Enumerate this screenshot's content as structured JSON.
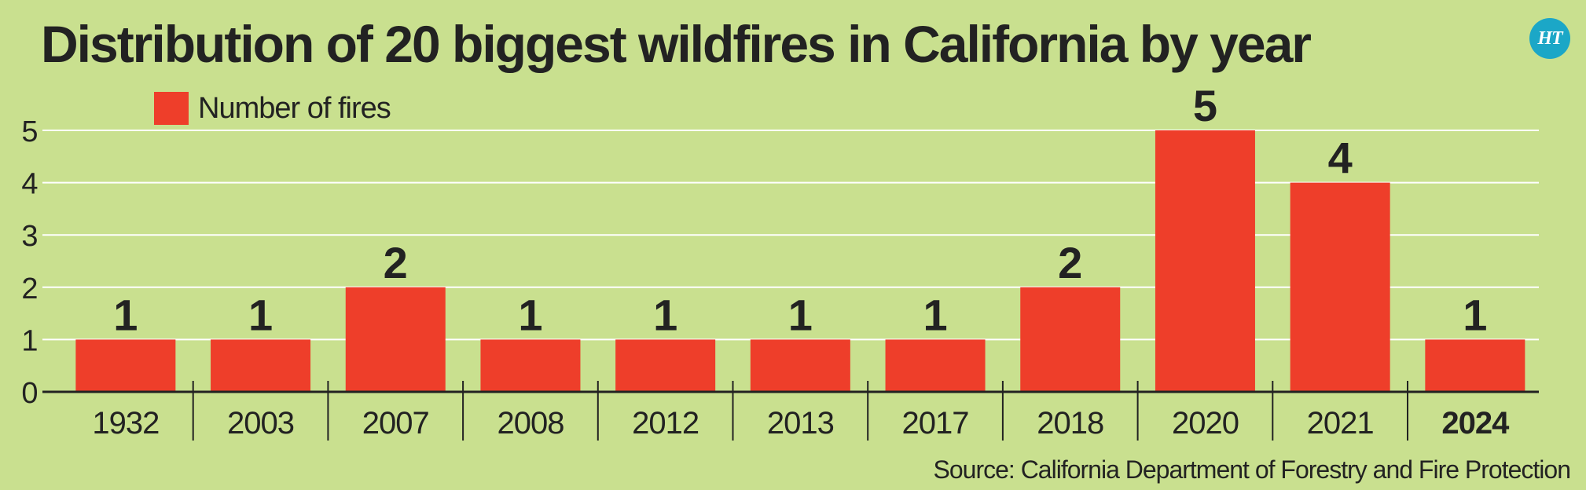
{
  "title": "Distribution of 20 biggest wildfires in California by year",
  "logo_text": "HT",
  "source": "Source: California Department of Forestry and Fire Protection",
  "colors": {
    "background": "#c9e08f",
    "bar": "#ee3e2a",
    "grid": "#ffffff",
    "text": "#222222",
    "logo": "#1ba7c7"
  },
  "chart_data": {
    "type": "bar",
    "title": "Distribution of 20 biggest wildfires in California by year",
    "categories": [
      "1932",
      "2003",
      "2007",
      "2008",
      "2012",
      "2013",
      "2017",
      "2018",
      "2020",
      "2021",
      "2024"
    ],
    "series": [
      {
        "name": "Number of fires",
        "values": [
          1,
          1,
          2,
          1,
          1,
          1,
          1,
          2,
          5,
          4,
          1
        ],
        "data_labels": [
          "1",
          "1",
          "2",
          "1",
          "1",
          "1",
          "1",
          "2",
          "5",
          "4",
          "1"
        ]
      }
    ],
    "emphasized_category": "2024",
    "y_ticks": [
      "0",
      "1",
      "2",
      "3",
      "4",
      "5"
    ],
    "ylim": [
      0,
      5
    ],
    "xlabel": "",
    "ylabel": "",
    "grid": true,
    "legend": "top-left"
  }
}
